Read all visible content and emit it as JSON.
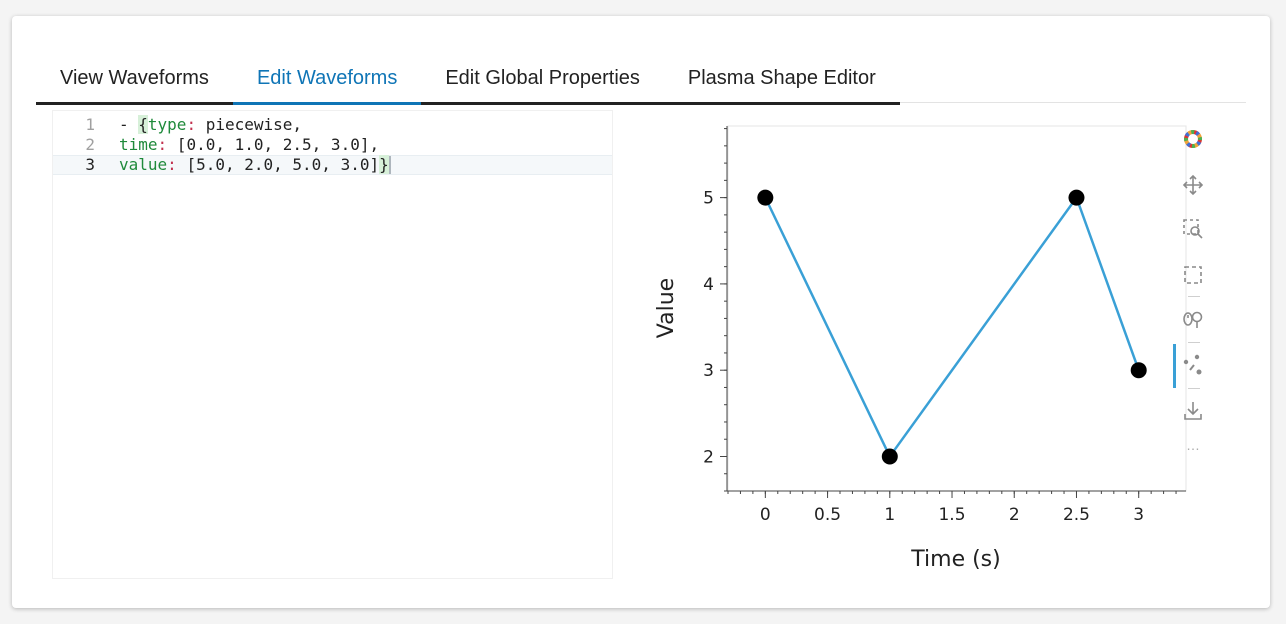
{
  "tabs": [
    {
      "label": "View Waveforms"
    },
    {
      "label": "Edit Waveforms"
    },
    {
      "label": "Edit Global Properties"
    },
    {
      "label": "Plasma Shape Editor"
    }
  ],
  "active_tab": "Edit Waveforms",
  "editor": {
    "lines": [
      {
        "number": "1",
        "prefix": "- ",
        "open_brace": "{",
        "key": "type",
        "colon": ":",
        "value": " piecewise,",
        "close_brace": ""
      },
      {
        "number": "2",
        "prefix": "",
        "open_brace": "",
        "key": "time",
        "colon": ":",
        "value": " [0.0, 1.0, 2.5, 3.0],",
        "close_brace": ""
      },
      {
        "number": "3",
        "prefix": "",
        "open_brace": "",
        "key": "value",
        "colon": ":",
        "value": " [5.0, 2.0, 5.0, 3.0]",
        "close_brace": "}"
      }
    ],
    "active_line": 3
  },
  "chart_data": {
    "type": "line",
    "title": "",
    "xlabel": "Time (s)",
    "ylabel": "Value",
    "x": [
      0.0,
      1.0,
      2.5,
      3.0
    ],
    "series": [
      {
        "values": [
          5.0,
          2.0,
          5.0,
          3.0
        ],
        "color": "#3aa0d6",
        "marker": "circle",
        "marker_color": "#000000"
      }
    ],
    "xlim": [
      -0.3,
      3.38
    ],
    "ylim": [
      1.6,
      5.83
    ],
    "xticks": [
      0,
      0.5,
      1,
      1.5,
      2,
      2.5,
      3
    ],
    "xtick_labels": [
      "0",
      "0.5",
      "1",
      "1.5",
      "2",
      "2.5",
      "3"
    ],
    "yticks": [
      2,
      3,
      4,
      5
    ],
    "ytick_labels": [
      "2",
      "3",
      "4",
      "5"
    ],
    "grid": false
  },
  "toolbar": {
    "items": [
      "bokeh-logo-icon",
      "pan-icon",
      "box-zoom-icon",
      "box-select-icon",
      "wheel-zoom-icon",
      "point-draw-icon",
      "save-icon",
      "more-icon"
    ],
    "active": "point-draw-icon",
    "more_label": "…"
  },
  "colors": {
    "accent": "#0f75b6",
    "line": "#3aa0d6",
    "points": "#000000"
  }
}
